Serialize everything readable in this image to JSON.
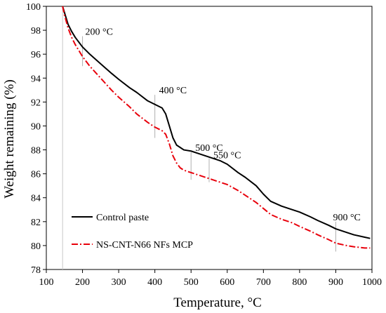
{
  "chart_data": {
    "type": "line",
    "xlabel": "Temperature, °C",
    "ylabel": "Weight remaining (%)",
    "xlim": [
      100,
      1000
    ],
    "ylim": [
      78,
      100
    ],
    "x_ticks": [
      "100",
      "200",
      "300",
      "400",
      "500",
      "600",
      "700",
      "800",
      "900",
      "1000"
    ],
    "y_ticks": [
      "78",
      "80",
      "82",
      "84",
      "86",
      "88",
      "90",
      "92",
      "94",
      "96",
      "98",
      "100"
    ],
    "grid": false,
    "legend_position": "bottom-left",
    "annotations": [
      {
        "text": "200 °C",
        "x": 200,
        "y_top": 97.5,
        "y_bottom": 95.0
      },
      {
        "text": "400 °C",
        "x": 400,
        "y_top": 92.6,
        "y_bottom": 89.0
      },
      {
        "text": "500 °C",
        "x": 500,
        "y_top": 87.8,
        "y_bottom": 85.5
      },
      {
        "text": "550 °C",
        "x": 550,
        "y_top": 87.3,
        "y_bottom": 85.3
      },
      {
        "text": "900 °C",
        "x": 900,
        "y_top": 82.0,
        "y_bottom": 79.5
      }
    ],
    "series": [
      {
        "name": "Control paste",
        "color": "#000000",
        "dash": "solid",
        "x": [
          145,
          150,
          160,
          170,
          180,
          190,
          200,
          220,
          250,
          280,
          300,
          330,
          350,
          380,
          400,
          420,
          430,
          440,
          450,
          460,
          470,
          480,
          500,
          520,
          550,
          580,
          600,
          630,
          650,
          680,
          700,
          720,
          750,
          780,
          800,
          830,
          850,
          880,
          900,
          930,
          950,
          980,
          995
        ],
        "y": [
          100.0,
          99.5,
          98.5,
          97.9,
          97.4,
          97.0,
          96.6,
          96.0,
          95.2,
          94.4,
          93.9,
          93.2,
          92.8,
          92.1,
          91.8,
          91.5,
          91.0,
          90.0,
          89.0,
          88.4,
          88.2,
          88.0,
          87.9,
          87.7,
          87.4,
          87.1,
          86.8,
          86.1,
          85.7,
          85.0,
          84.3,
          83.7,
          83.3,
          83.0,
          82.8,
          82.4,
          82.1,
          81.7,
          81.4,
          81.1,
          80.9,
          80.7,
          80.6
        ]
      },
      {
        "name": "NS-CNT-N66 NFs MCP",
        "color": "#e8000b",
        "dash": "dash-dot",
        "x": [
          145,
          150,
          160,
          170,
          180,
          190,
          200,
          220,
          250,
          280,
          300,
          330,
          350,
          380,
          400,
          420,
          430,
          440,
          450,
          460,
          470,
          480,
          500,
          520,
          550,
          580,
          600,
          630,
          650,
          680,
          700,
          720,
          750,
          780,
          800,
          830,
          850,
          880,
          900,
          930,
          950,
          980,
          995
        ],
        "y": [
          100.0,
          99.3,
          98.2,
          97.4,
          96.8,
          96.3,
          95.8,
          95.0,
          94.0,
          93.0,
          92.4,
          91.6,
          91.0,
          90.3,
          89.9,
          89.6,
          89.3,
          88.5,
          87.5,
          86.9,
          86.5,
          86.3,
          86.1,
          85.9,
          85.6,
          85.3,
          85.1,
          84.6,
          84.2,
          83.6,
          83.1,
          82.6,
          82.2,
          81.9,
          81.6,
          81.2,
          80.9,
          80.5,
          80.2,
          80.0,
          79.9,
          79.8,
          79.8
        ]
      }
    ]
  }
}
